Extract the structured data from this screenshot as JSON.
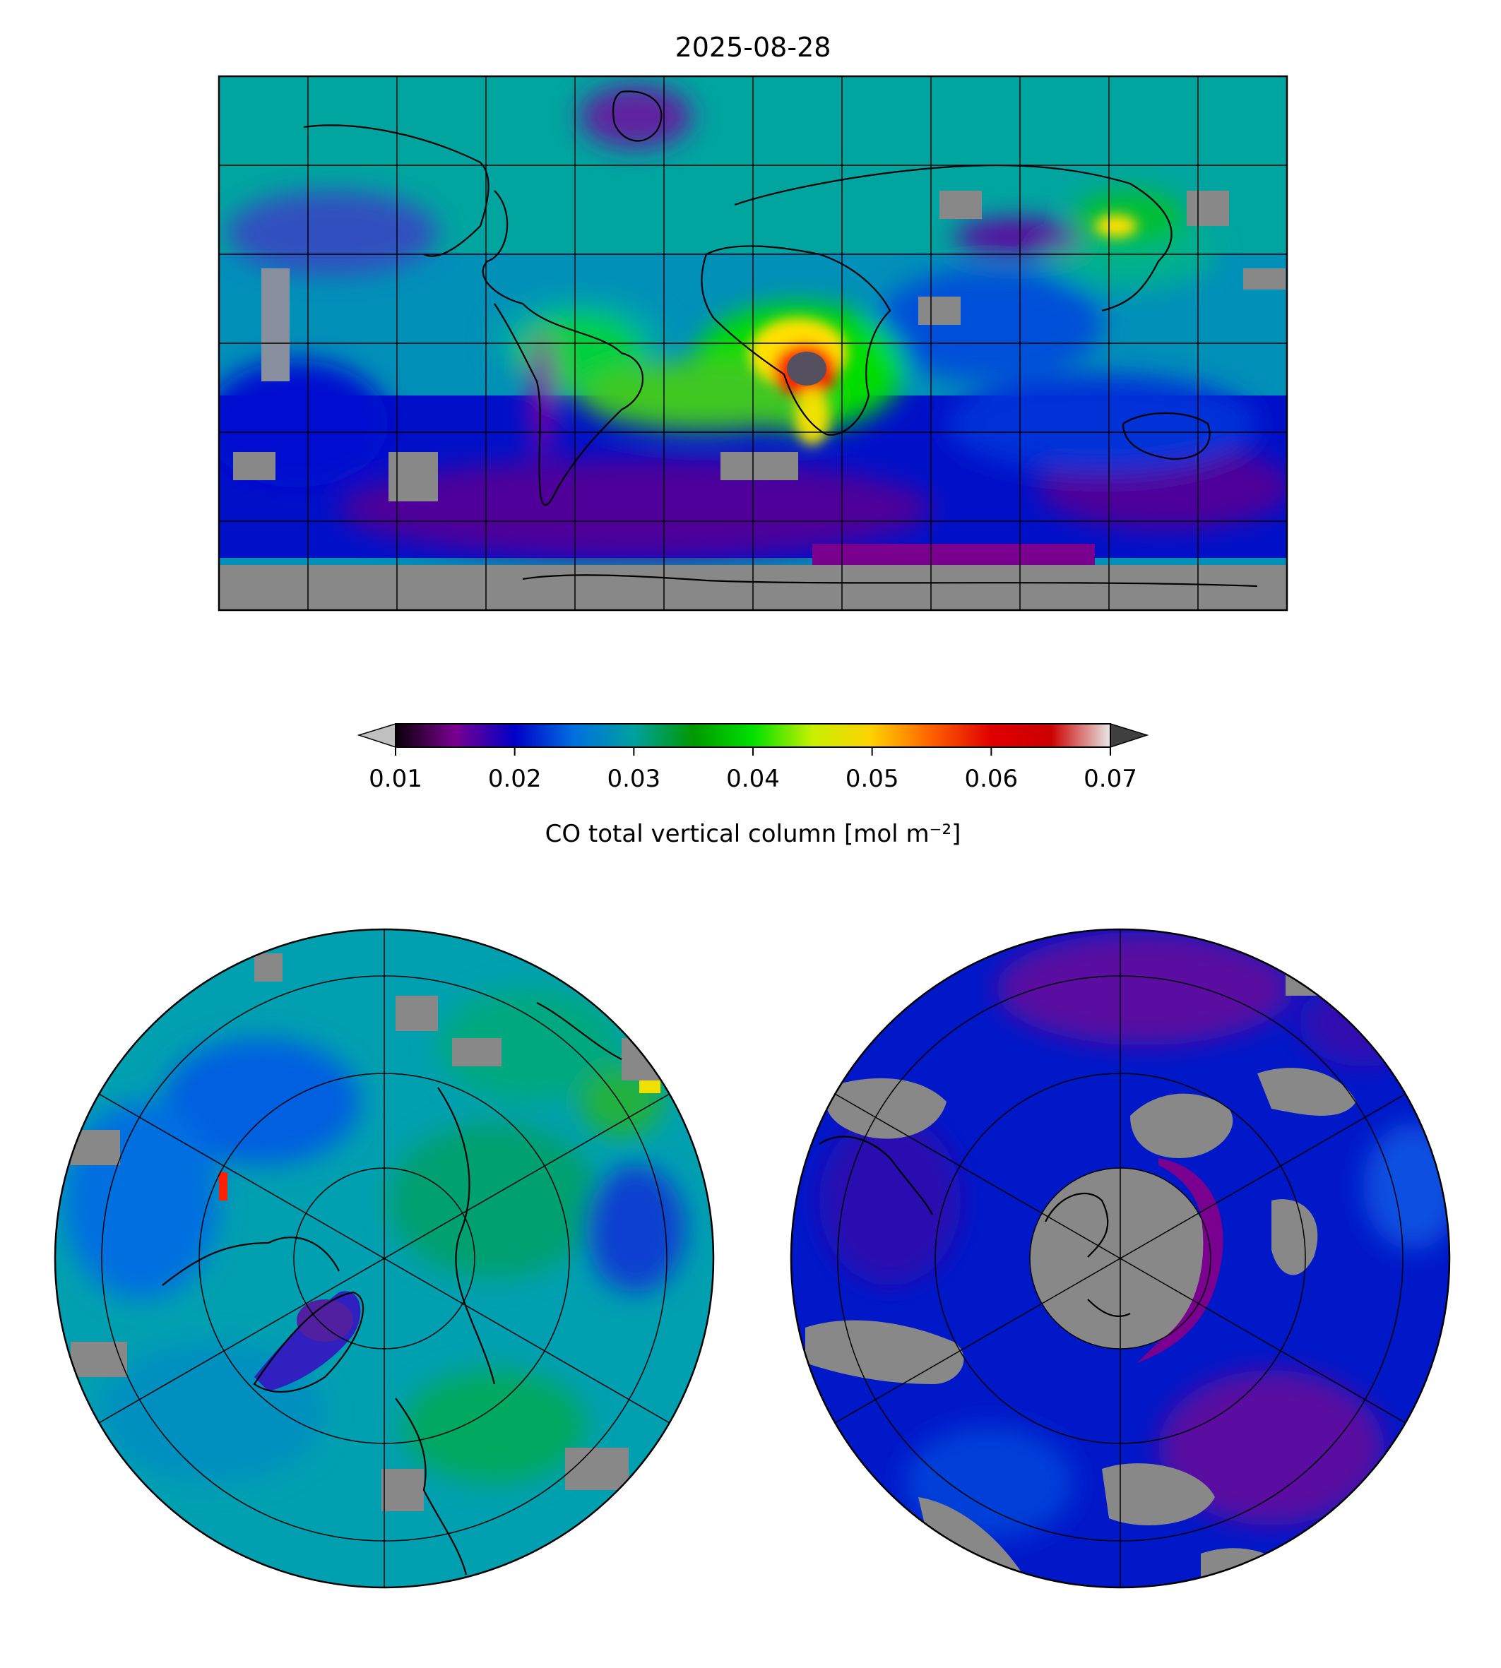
{
  "figure": {
    "title": "2025-08-28"
  },
  "colorbar": {
    "label": "CO total vertical column [mol m⁻²]",
    "ticks": [
      "0.01",
      "0.02",
      "0.03",
      "0.04",
      "0.05",
      "0.06",
      "0.07"
    ],
    "tick_values": [
      0.01,
      0.02,
      0.03,
      0.04,
      0.05,
      0.06,
      0.07
    ],
    "range": [
      0.01,
      0.07
    ],
    "extend": "both",
    "under_color": "#c0c0c0",
    "over_color": "#404040",
    "nodata_color": "#888888",
    "colors": [
      "#0a0008",
      "#7a0090",
      "#0000c8",
      "#0070e0",
      "#00a0a0",
      "#009900",
      "#00e000",
      "#c8f000",
      "#ffd000",
      "#ff6000",
      "#e00000",
      "#cc0000",
      "#e8e8e8"
    ]
  },
  "maps": {
    "global": {
      "projection": "plate-carree",
      "coastlines": true,
      "gridlines": true
    },
    "north_polar": {
      "projection": "north-polar-stereographic",
      "coastlines": true,
      "gridlines": true
    },
    "south_polar": {
      "projection": "south-polar-stereographic",
      "coastlines": true,
      "gridlines": true
    }
  },
  "regions": {
    "high_co": [
      "central-southern Africa",
      "eastern China"
    ],
    "low_co": [
      "Greenland",
      "Tibetan Plateau",
      "Antarctica",
      "Southern Ocean"
    ]
  }
}
